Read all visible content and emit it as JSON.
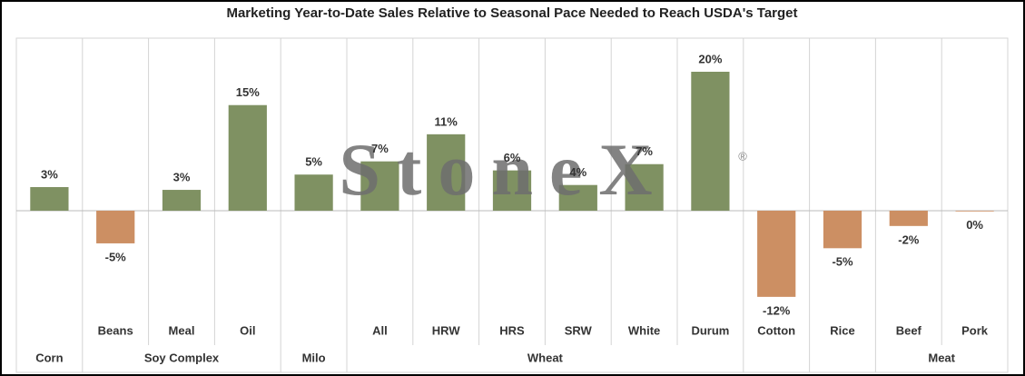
{
  "chart_data": {
    "type": "bar",
    "title": "Marketing Year-to-Date Sales Relative to Seasonal Pace Needed to Reach USDA's Target",
    "watermark": "StoneX",
    "watermark_mark": "®",
    "categories": [
      null,
      "Beans",
      "Meal",
      "Oil",
      null,
      "All",
      "HRW",
      "HRS",
      "SRW",
      "White",
      "Durum",
      "Cotton",
      "Rice",
      "Beef",
      "Pork"
    ],
    "groups": [
      "Corn",
      "Soy Complex",
      "Soy Complex",
      "Soy Complex",
      "Milo",
      "Wheat",
      "Wheat",
      "Wheat",
      "Wheat",
      "Wheat",
      "Wheat",
      null,
      null,
      "Meat",
      "Meat"
    ],
    "values": [
      3.4,
      -4.7,
      3.0,
      15.2,
      5.2,
      7.1,
      11.0,
      5.8,
      3.7,
      6.7,
      20.0,
      -12.4,
      -5.4,
      -2.2,
      -0.1
    ],
    "value_labels": [
      "3%",
      "-5%",
      "3%",
      "15%",
      "5%",
      "7%",
      "11%",
      "6%",
      "4%",
      "7%",
      "20%",
      "-12%",
      "-5%",
      "-2%",
      "0%"
    ],
    "positive_color": "#7f9162",
    "negative_color": "#cc8f63"
  }
}
